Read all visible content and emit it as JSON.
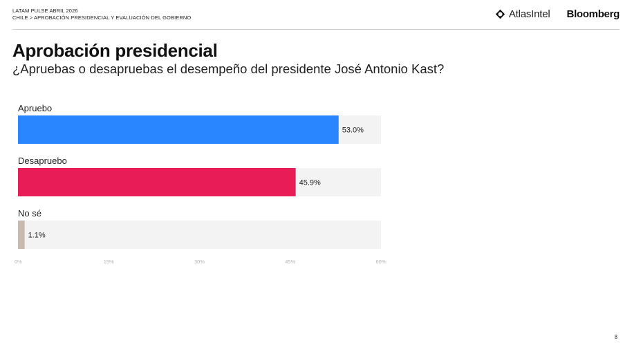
{
  "header": {
    "line1": "LATAM PULSE ABRIL 2026",
    "line2": "CHILE > APROBACIÓN PRESIDENCIAL Y EVALUACIÓN DEL GOBIERNO",
    "logo_atlas": "AtlasIntel",
    "logo_bloomberg": "Bloomberg"
  },
  "title": "Aprobación presidencial",
  "subtitle": "¿Apruebas o desapruebas el desempeño del presidente José Antonio Kast?",
  "page_number": "8",
  "colors": {
    "apruebo": "#2a86ff",
    "desapruebo": "#e81c57",
    "nose": "#c8b8ae",
    "track": "#f3f3f3"
  },
  "chart_data": {
    "type": "bar",
    "orientation": "horizontal",
    "categories": [
      "Apruebo",
      "Desapruebo",
      "No sé"
    ],
    "values": [
      53.0,
      45.9,
      1.1
    ],
    "value_labels": [
      "53.0%",
      "45.9%",
      "1.1%"
    ],
    "xlim": [
      0,
      60
    ],
    "x_ticks": [
      0,
      15,
      30,
      45,
      60
    ],
    "x_tick_labels": [
      "0%",
      "15%",
      "30%",
      "45%",
      "60%"
    ],
    "grid": false
  }
}
